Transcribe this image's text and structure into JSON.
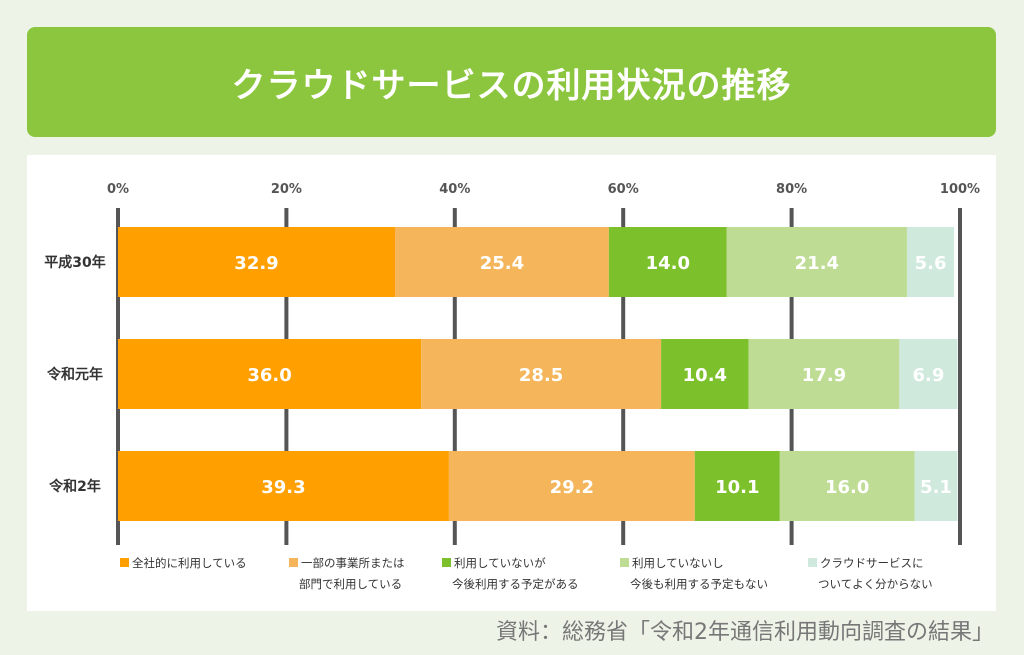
{
  "title": "クラウドサービスの利用状況の推移",
  "source": "資料：総務省「令和2年通信利用動向調査の結果」",
  "colors": {
    "title_bg": "#8cc63f",
    "series": [
      "#ff9f00",
      "#f4b55b",
      "#7cc02c",
      "#bfdc94",
      "#cfe9dd"
    ]
  },
  "chart_data": {
    "type": "bar",
    "orientation": "horizontal",
    "stacked": true,
    "x_ticks": [
      "0%",
      "20%",
      "40%",
      "60%",
      "80%",
      "100%"
    ],
    "xlim": [
      0,
      100
    ],
    "categories": [
      "平成30年",
      "令和元年",
      "令和2年"
    ],
    "series": [
      {
        "name": "全社的に利用している",
        "values": [
          32.9,
          36.0,
          39.3
        ]
      },
      {
        "name": "一部の事業所または部門で利用している",
        "values": [
          25.4,
          28.5,
          29.2
        ]
      },
      {
        "name": "利用していないが今後利用する予定がある",
        "values": [
          14.0,
          10.4,
          10.1
        ]
      },
      {
        "name": "利用していないし今後も利用する予定もない",
        "values": [
          21.4,
          17.9,
          16.0
        ]
      },
      {
        "name": "クラウドサービスについてよく分からない",
        "values": [
          5.6,
          6.9,
          5.1
        ]
      }
    ],
    "legend": [
      [
        "全社的に利用している"
      ],
      [
        "一部の事業所または",
        "部門で利用している"
      ],
      [
        "利用していないが",
        "今後利用する予定がある"
      ],
      [
        "利用していないし",
        "今後も利用する予定もない"
      ],
      [
        "クラウドサービスに",
        "ついてよく分からない"
      ]
    ],
    "legend_position": "bottom",
    "grid": true
  }
}
